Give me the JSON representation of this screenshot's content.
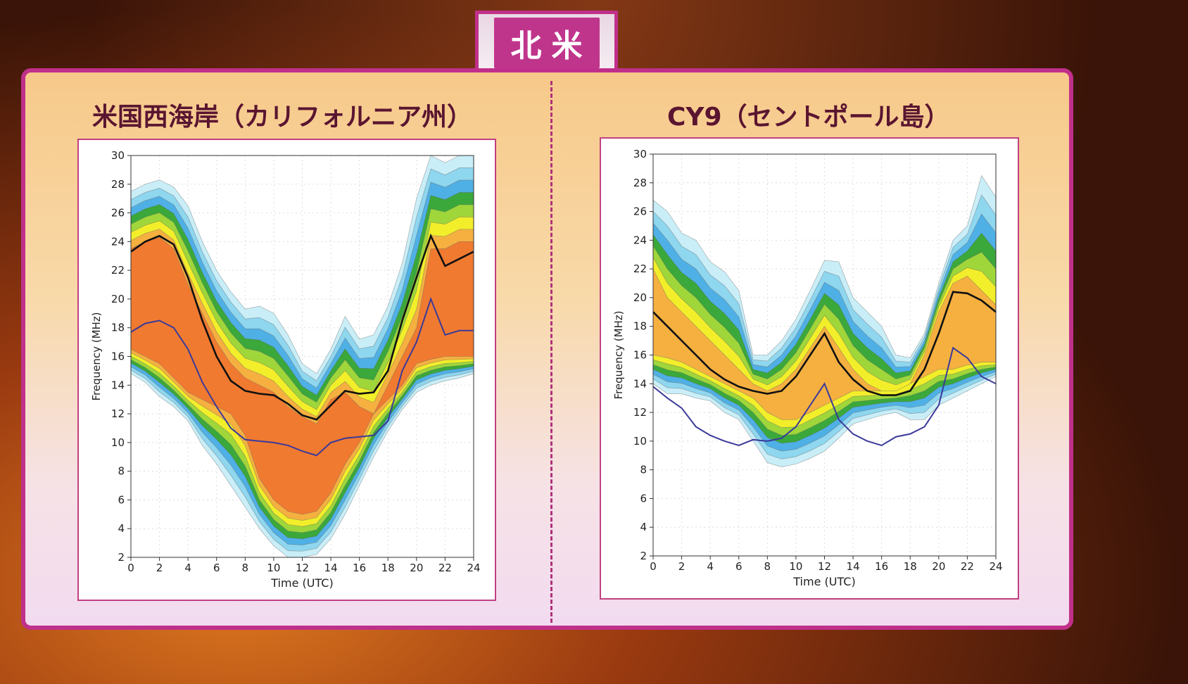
{
  "header": {
    "region_tab": "北米"
  },
  "chart_data": [
    {
      "type": "contour",
      "title": "米国西海岸（カリフォルニア州）",
      "xlabel": "Time (UTC)",
      "ylabel": "Frequency (MHz)",
      "xlim": [
        0,
        24
      ],
      "ylim": [
        2,
        30
      ],
      "xticks": [
        0,
        2,
        4,
        6,
        8,
        10,
        12,
        14,
        16,
        18,
        20,
        22,
        24
      ],
      "yticks": [
        2,
        4,
        6,
        8,
        10,
        12,
        14,
        16,
        18,
        20,
        22,
        24,
        26,
        28,
        30
      ],
      "grid": true,
      "hours": [
        0,
        1,
        2,
        3,
        4,
        5,
        6,
        7,
        8,
        9,
        10,
        11,
        12,
        13,
        14,
        15,
        16,
        17,
        18,
        19,
        20,
        21,
        22,
        23,
        24
      ],
      "levels": 8,
      "outer_upper": [
        27.5,
        28,
        28.3,
        27.8,
        26.5,
        24,
        22,
        20.5,
        19.3,
        19.5,
        19,
        17.5,
        15.5,
        14.8,
        16.5,
        18.8,
        17.2,
        17.5,
        19.5,
        22.5,
        27,
        30,
        29.5,
        30,
        30
      ],
      "outer_lower": [
        14.8,
        14.2,
        13.2,
        12.5,
        11.5,
        9.8,
        8.5,
        7,
        5.5,
        4,
        2.8,
        2,
        2,
        2.2,
        3.3,
        5,
        7,
        9,
        10.8,
        12.3,
        13.5,
        14,
        14.3,
        14.5,
        14.8
      ],
      "core_upper": [
        23.5,
        24,
        24.3,
        23.5,
        21,
        19,
        17,
        15.5,
        14.5,
        14,
        13.5,
        12.5,
        11.8,
        11.3,
        13,
        13.5,
        12.5,
        12,
        14,
        16,
        18,
        23.5,
        23.5,
        24,
        24
      ],
      "core_lower": [
        16.5,
        16,
        15.5,
        14.5,
        13.5,
        13,
        12.5,
        12,
        10.5,
        7.5,
        6,
        5.2,
        5,
        5.2,
        6.5,
        8.5,
        10,
        12,
        13,
        14,
        15.5,
        15.8,
        16,
        16,
        16
      ],
      "muf_black": [
        23.3,
        24,
        24.4,
        23.8,
        21.5,
        18.5,
        16,
        14.3,
        13.6,
        13.4,
        13.3,
        12.7,
        11.9,
        11.6,
        12.6,
        13.6,
        13.4,
        13.5,
        15,
        18.5,
        21.5,
        24.4,
        22.3,
        22.8,
        23.3
      ],
      "line_blue": [
        17.7,
        18.3,
        18.5,
        18,
        16.5,
        14.2,
        12.5,
        11,
        10.2,
        10.1,
        10,
        9.8,
        9.4,
        9.1,
        10,
        10.3,
        10.4,
        10.5,
        11.5,
        15,
        17,
        20,
        17.5,
        17.8,
        17.8
      ]
    },
    {
      "type": "contour",
      "title": "CY9（セントポール島）",
      "xlabel": "Time (UTC)",
      "ylabel": "Frequency (MHz)",
      "xlim": [
        0,
        24
      ],
      "ylim": [
        2,
        30
      ],
      "xticks": [
        0,
        2,
        4,
        6,
        8,
        10,
        12,
        14,
        16,
        18,
        20,
        22,
        24
      ],
      "yticks": [
        2,
        4,
        6,
        8,
        10,
        12,
        14,
        16,
        18,
        20,
        22,
        24,
        26,
        28,
        30
      ],
      "grid": true,
      "hours": [
        0,
        1,
        2,
        3,
        4,
        5,
        6,
        7,
        8,
        9,
        10,
        11,
        12,
        13,
        14,
        15,
        16,
        17,
        18,
        19,
        20,
        21,
        22,
        23,
        24
      ],
      "levels": 7,
      "outer_upper": [
        26.8,
        26,
        24.5,
        24,
        22.5,
        21.8,
        20.5,
        16,
        16,
        17,
        18.5,
        20.5,
        22.6,
        22.5,
        20,
        19,
        18,
        16,
        15.8,
        17.5,
        21,
        24,
        25,
        28.5,
        27
      ],
      "outer_lower": [
        14,
        13.3,
        13.3,
        13,
        12.8,
        12,
        11.5,
        10,
        8.5,
        8.2,
        8.4,
        8.8,
        9.3,
        10.2,
        11.2,
        11.5,
        11.8,
        12,
        11.5,
        11.5,
        12.5,
        13,
        13.5,
        14,
        14.5
      ],
      "core_upper": [
        22,
        20,
        19,
        18,
        17,
        16,
        15,
        14,
        13.5,
        14,
        15,
        16.5,
        18,
        16.5,
        15,
        14,
        13.5,
        13.5,
        14,
        16,
        19,
        21,
        21.5,
        20.5,
        19.5
      ],
      "core_lower": [
        16,
        15.8,
        15.5,
        15,
        14.5,
        14,
        13.5,
        13,
        12,
        11.5,
        11.5,
        12,
        12.5,
        13,
        13.5,
        13.5,
        13.5,
        13.5,
        14,
        14.5,
        15,
        15,
        15.3,
        15.5,
        15.5
      ],
      "muf_black": [
        19,
        18,
        17,
        16,
        15,
        14.3,
        13.8,
        13.5,
        13.3,
        13.5,
        14.5,
        16,
        17.5,
        15.5,
        14.3,
        13.5,
        13.2,
        13.2,
        13.5,
        15,
        17.5,
        20.4,
        20.3,
        19.8,
        19
      ],
      "line_blue": [
        13.8,
        13,
        12.3,
        11,
        10.4,
        10,
        9.7,
        10.1,
        10,
        10.2,
        11,
        12.5,
        14,
        11.5,
        10.5,
        10,
        9.7,
        10.3,
        10.5,
        11,
        12.5,
        16.5,
        15.8,
        14.5,
        14
      ]
    }
  ],
  "colors": {
    "levels": [
      "#c9eef8",
      "#8fd6ef",
      "#4fb0e6",
      "#3aa83a",
      "#9fd63a",
      "#f2ee2a",
      "#f5b040",
      "#f07a30"
    ],
    "muf": "#111111",
    "blue_line": "#3a3a9a",
    "accent": "#c0308a"
  }
}
